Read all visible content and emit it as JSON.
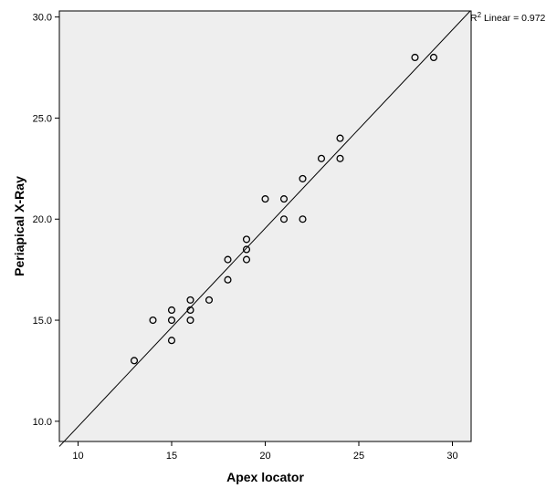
{
  "chart_data": {
    "type": "scatter",
    "title": "",
    "xlabel": "Apex locator",
    "ylabel": "Periapical X-Ray",
    "xlim": [
      9,
      31
    ],
    "ylim": [
      9,
      30.3
    ],
    "x_ticks": [
      10,
      15,
      20,
      25,
      30
    ],
    "x_tick_labels": [
      "10",
      "15",
      "20",
      "25",
      "30"
    ],
    "y_ticks": [
      10,
      15,
      20,
      25,
      30
    ],
    "y_tick_labels": [
      "10.0",
      "15.0",
      "20.0",
      "25.0",
      "30.0"
    ],
    "grid": false,
    "plot_background": "#eeeeee",
    "marker_color": "#000000",
    "fit_line": {
      "type": "linear",
      "intercept": -0.08,
      "slope": 0.9815,
      "annotation_prefix": "R",
      "annotation_superscript": "2",
      "annotation_suffix": " Linear = 0.972"
    },
    "points": [
      {
        "x": 13,
        "y": 13
      },
      {
        "x": 14,
        "y": 15
      },
      {
        "x": 15,
        "y": 15.5
      },
      {
        "x": 15,
        "y": 15
      },
      {
        "x": 15,
        "y": 14
      },
      {
        "x": 16,
        "y": 16
      },
      {
        "x": 16,
        "y": 15.5
      },
      {
        "x": 16,
        "y": 15
      },
      {
        "x": 17,
        "y": 16
      },
      {
        "x": 18,
        "y": 18
      },
      {
        "x": 18,
        "y": 17
      },
      {
        "x": 19,
        "y": 19
      },
      {
        "x": 19,
        "y": 18.5
      },
      {
        "x": 19,
        "y": 18
      },
      {
        "x": 20,
        "y": 21
      },
      {
        "x": 21,
        "y": 21
      },
      {
        "x": 21,
        "y": 20
      },
      {
        "x": 22,
        "y": 22
      },
      {
        "x": 22,
        "y": 20
      },
      {
        "x": 23,
        "y": 23
      },
      {
        "x": 24,
        "y": 24
      },
      {
        "x": 24,
        "y": 23
      },
      {
        "x": 28,
        "y": 28
      },
      {
        "x": 29,
        "y": 28
      }
    ]
  }
}
